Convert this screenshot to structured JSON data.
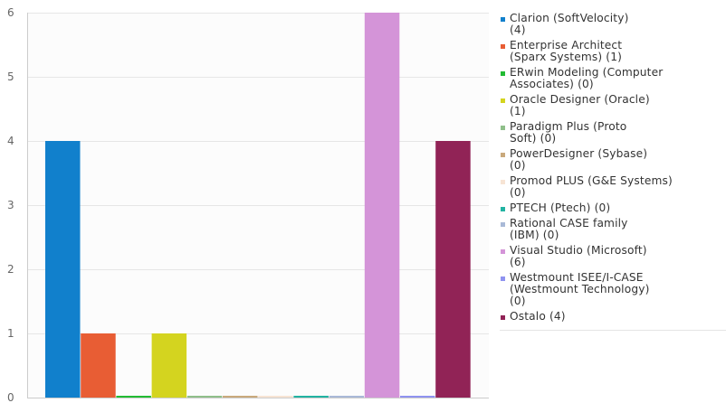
{
  "chart_data": {
    "type": "bar",
    "categories": [
      "Clarion (SoftVelocity)",
      "Enterprise Architect (Sparx Systems)",
      "ERwin Modeling (Computer Associates)",
      "Oracle Designer (Oracle)",
      "Paradigm Plus (Proto Soft)",
      "PowerDesigner (Sybase)",
      "Promod PLUS (G&E Systems)",
      "PTECH (Ptech)",
      "Rational CASE family (IBM)",
      "Visual Studio (Microsoft)",
      "Westmount ISEE/I-CASE (Westmount Technology)",
      "Ostalo"
    ],
    "values": [
      4,
      1,
      0,
      1,
      0,
      0,
      0,
      0,
      0,
      6,
      0,
      4
    ],
    "colors": [
      "#1180cc",
      "#e85d34",
      "#22bb33",
      "#d4d41f",
      "#8fbf8a",
      "#c9a97c",
      "#f7e4d4",
      "#22b3a2",
      "#a9b9d7",
      "#d494d8",
      "#8f93f0",
      "#912356"
    ],
    "legend_labels": [
      "Clarion (SoftVelocity)\n(4)",
      "Enterprise Architect\n(Sparx Systems) (1)",
      "ERwin Modeling (Computer\nAssociates) (0)",
      "Oracle Designer (Oracle)\n(1)",
      "Paradigm Plus (Proto\nSoft) (0)",
      "PowerDesigner (Sybase)\n(0)",
      "Promod PLUS (G&E Systems)\n(0)",
      "PTECH (Ptech) (0)",
      "Rational CASE family\n(IBM) (0)",
      "Visual Studio (Microsoft)\n(6)",
      "Westmount ISEE/I-CASE\n(Westmount Technology)\n(0)",
      "Ostalo (4)"
    ],
    "y_ticks": [
      "0",
      "1",
      "2",
      "3",
      "4",
      "5",
      "6"
    ],
    "ylim": [
      0,
      6
    ],
    "grid": true,
    "legend_position": "right",
    "title": "",
    "xlabel": "",
    "ylabel": ""
  }
}
